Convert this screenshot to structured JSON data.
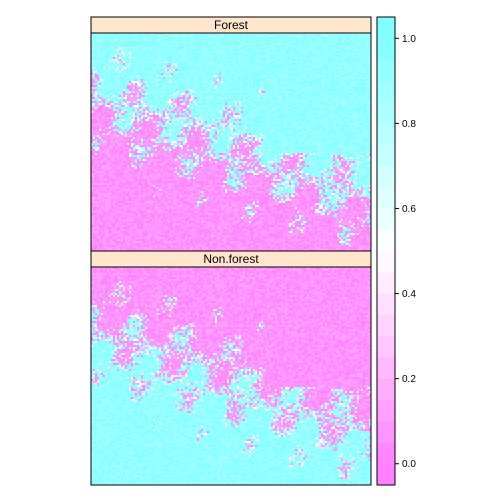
{
  "chart_data": {
    "type": "heatmap",
    "title": "",
    "xlabel": "",
    "ylabel": "",
    "panels": [
      {
        "name": "Forest"
      },
      {
        "name": "Non.forest"
      }
    ],
    "colorkey": {
      "range": [
        -0.05,
        1.05
      ],
      "ticks": [
        0.0,
        0.2,
        0.4,
        0.6,
        0.8,
        1.0
      ],
      "tick_labels": [
        "0.0",
        "0.2",
        "0.4",
        "0.6",
        "0.8",
        "1.0"
      ],
      "low_color": "#ff80ff",
      "mid_color": "#ffffff",
      "high_color": "#80ffff"
    },
    "strip_color": "#ffe5cc",
    "grid": false
  }
}
